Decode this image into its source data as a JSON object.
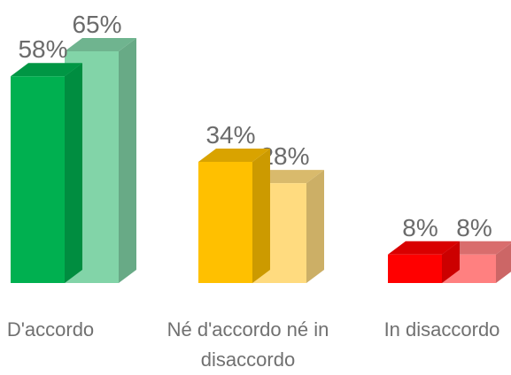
{
  "chart_data": {
    "type": "bar3d",
    "categories": [
      "D'accordo",
      "Né d'accordo né in disaccordo",
      "In disaccordo"
    ],
    "series": [
      {
        "values": [
          58,
          34,
          8
        ],
        "value_labels": [
          "58%",
          "34%",
          "8%"
        ],
        "colors": [
          "#00b050",
          "#ffc000",
          "#ff0000"
        ]
      },
      {
        "values": [
          65,
          28,
          8
        ],
        "value_labels": [
          "65%",
          "28%",
          "8%"
        ],
        "colors": [
          "#82d4a8",
          "#ffdb7f",
          "#ff8080"
        ]
      }
    ]
  }
}
